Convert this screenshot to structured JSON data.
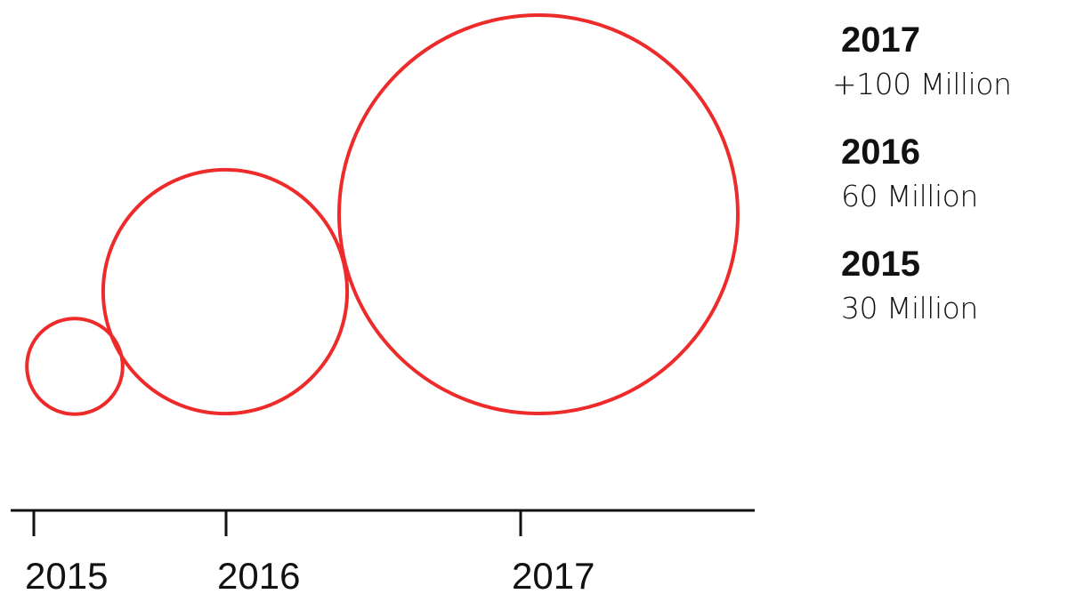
{
  "chart_data": {
    "type": "bubble",
    "categories": [
      "2015",
      "2016",
      "2017"
    ],
    "values": [
      30,
      60,
      100
    ],
    "series": [
      {
        "values": [
          30,
          60,
          100
        ]
      }
    ],
    "x_tick_labels": [
      "2015",
      "2016",
      "2017"
    ],
    "legend": {
      "placement": "right",
      "entries": [
        {
          "year": "2017",
          "value_text": "+100 Million"
        },
        {
          "year": "2016",
          "value_text": "60 Million"
        },
        {
          "year": "2015",
          "value_text": "30 Million"
        }
      ]
    },
    "grid": false,
    "colors": {
      "bubble_stroke": "#ee2b2b",
      "axis": "#111111",
      "text": "#111111"
    }
  }
}
